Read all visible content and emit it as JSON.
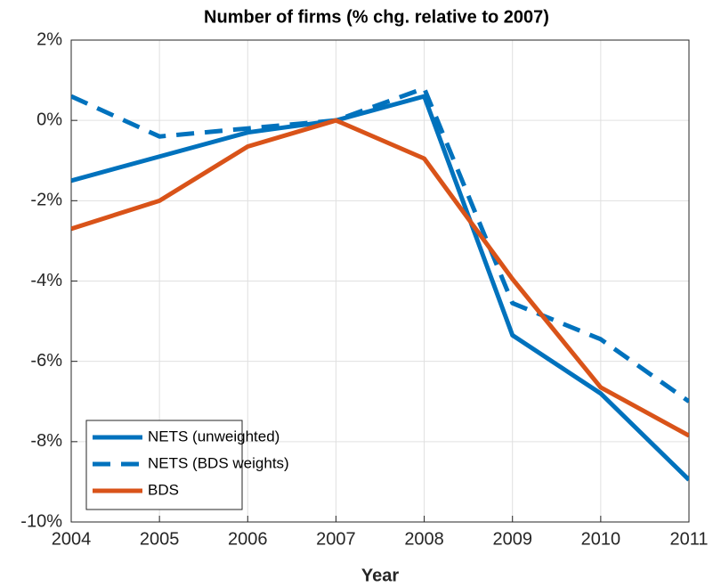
{
  "chart_data": {
    "type": "line",
    "title": "Number of firms (% chg. relative to 2007)",
    "x_label": "Year",
    "x": [
      2004,
      2005,
      2006,
      2007,
      2008,
      2009,
      2010,
      2011
    ],
    "series": [
      {
        "name": "NETS (unweighted)",
        "color": "#0072bd",
        "dash": false,
        "values": [
          -1.5,
          -0.9,
          -0.3,
          0,
          0.6,
          -5.35,
          -6.8,
          -8.95
        ]
      },
      {
        "name": "NETS (BDS weights)",
        "color": "#0072bd",
        "dash": true,
        "values": [
          0.6,
          -0.4,
          -0.2,
          0,
          0.8,
          -4.55,
          -5.45,
          -7.0
        ]
      },
      {
        "name": "BDS",
        "color": "#d95319",
        "dash": false,
        "values": [
          -2.7,
          -2.0,
          -0.65,
          0,
          -0.95,
          -3.95,
          -6.65,
          -7.85
        ]
      }
    ],
    "xlim": [
      2004,
      2011
    ],
    "xticks": [
      2004,
      2005,
      2006,
      2007,
      2008,
      2009,
      2010,
      2011
    ],
    "ylim": [
      -10,
      2
    ],
    "yticks": [
      {
        "value": -10,
        "label": "-10%"
      },
      {
        "value": -8,
        "label": "-8%"
      },
      {
        "value": -6,
        "label": "-6%"
      },
      {
        "value": -4,
        "label": "-4%"
      },
      {
        "value": -2,
        "label": "-2%"
      },
      {
        "value": 0,
        "label": "0%"
      },
      {
        "value": 2,
        "label": "2%"
      }
    ],
    "grid": true,
    "legend": "lower-left"
  }
}
